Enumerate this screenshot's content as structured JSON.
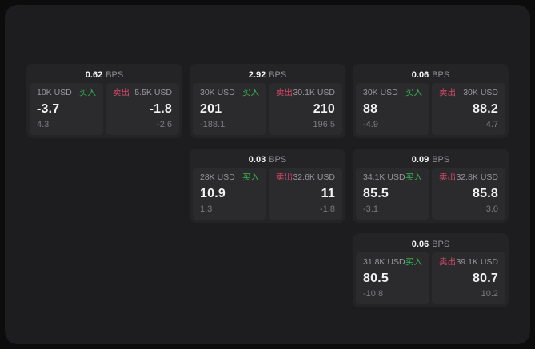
{
  "labels": {
    "bps": "BPS",
    "buy": "买入",
    "sell": "卖出"
  },
  "colors": {
    "background": "#0c0c0c",
    "window": "#1d1d1f",
    "card": "#242426",
    "panel": "#2b2b2d",
    "buy_green": "#35b452",
    "sell_red": "#d9486b",
    "text_primary": "#f2f2f2",
    "text_muted": "#98989d"
  },
  "cards": [
    {
      "bps": "0.62",
      "buy": {
        "amount": "10K USD",
        "value": "-3.7",
        "sub": "4.3"
      },
      "sell": {
        "amount": "5.5K USD",
        "value": "-1.8",
        "sub": "-2.6"
      }
    },
    {
      "bps": "2.92",
      "buy": {
        "amount": "30K USD",
        "value": "201",
        "sub": "-188.1"
      },
      "sell": {
        "amount": "30.1K USD",
        "value": "210",
        "sub": "196.5"
      }
    },
    {
      "bps": "0.06",
      "buy": {
        "amount": "30K USD",
        "value": "88",
        "sub": "-4.9"
      },
      "sell": {
        "amount": "30K USD",
        "value": "88.2",
        "sub": "4.7"
      }
    },
    {
      "bps": "0.03",
      "buy": {
        "amount": "28K USD",
        "value": "10.9",
        "sub": "1.3"
      },
      "sell": {
        "amount": "32.6K USD",
        "value": "11",
        "sub": "-1.8"
      }
    },
    {
      "bps": "0.09",
      "buy": {
        "amount": "34.1K USD",
        "value": "85.5",
        "sub": "-3.1"
      },
      "sell": {
        "amount": "32.8K USD",
        "value": "85.8",
        "sub": "3.0"
      }
    },
    {
      "bps": "0.06",
      "buy": {
        "amount": "31.8K USD",
        "value": "80.5",
        "sub": "-10.8"
      },
      "sell": {
        "amount": "39.1K USD",
        "value": "80.7",
        "sub": "10.2"
      }
    }
  ]
}
